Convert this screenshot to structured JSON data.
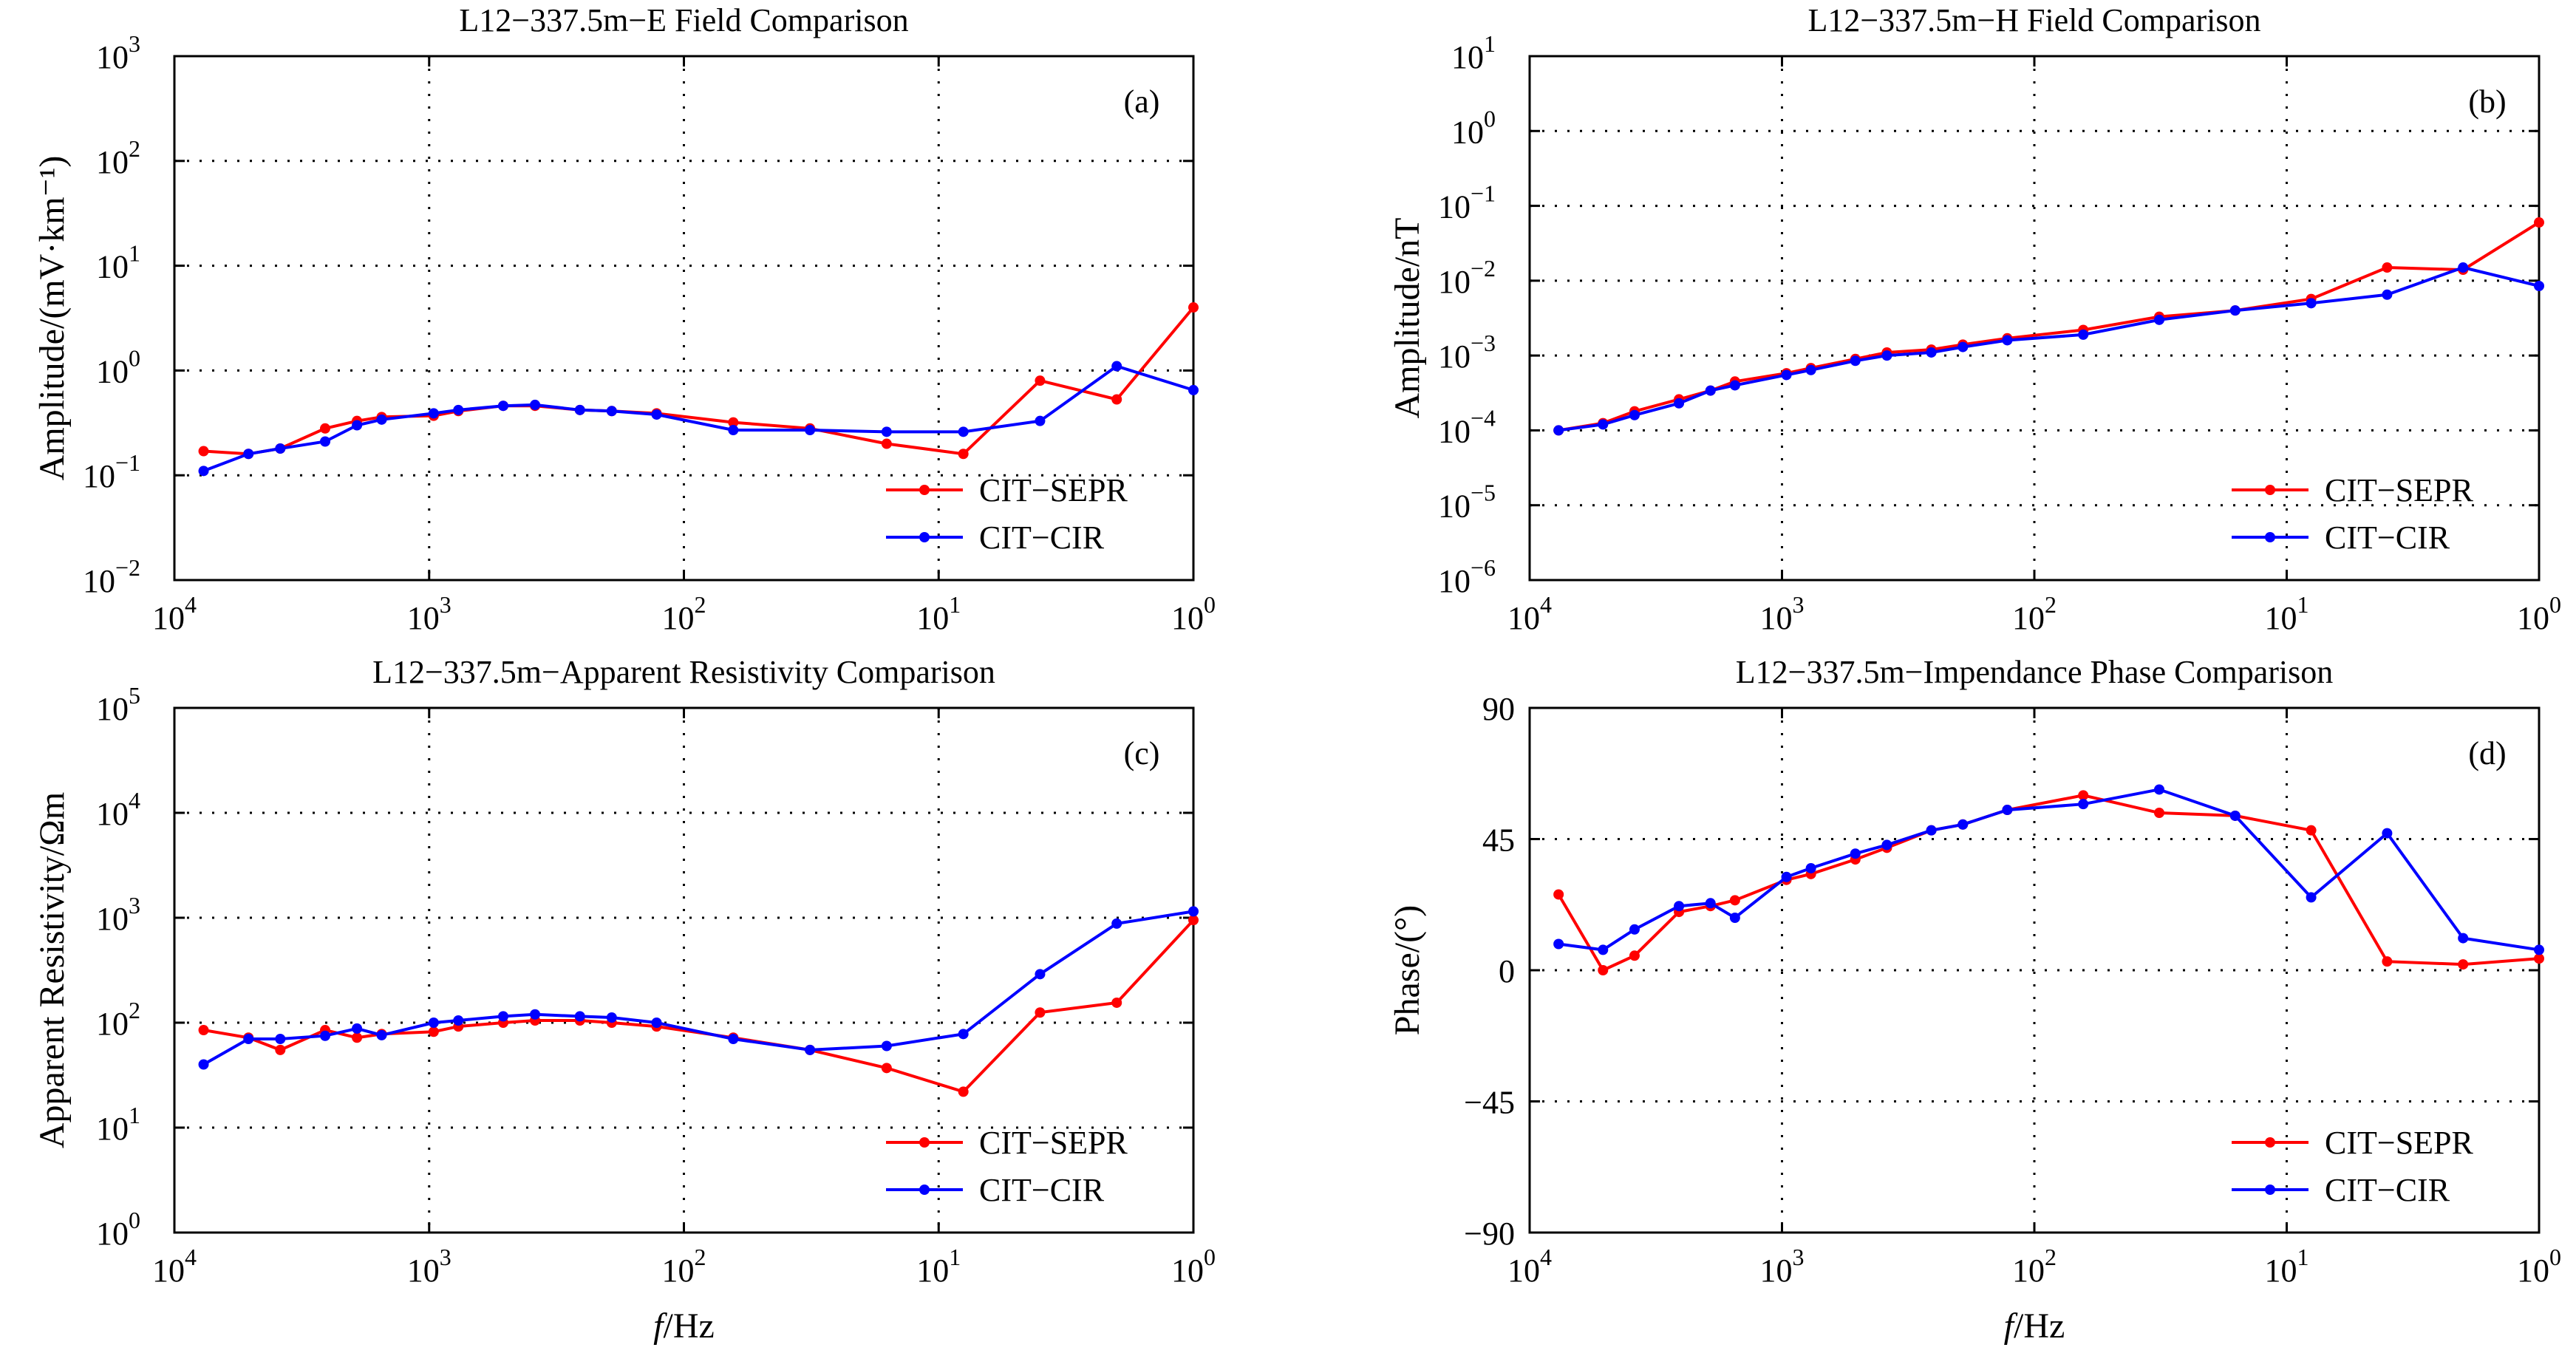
{
  "colors": {
    "CIT-SEPR": "#ff0000",
    "CIT-CIR": "#0000ff"
  },
  "xlabel_italic": "f",
  "xlabel_unit": "/Hz",
  "chart_data": [
    {
      "type": "line",
      "panel": "(a)",
      "title": "L12−337.5m−E Field Comparison",
      "ylabel": "Amplitude/(mV·km⁻¹)",
      "xscale": "log",
      "yscale": "log",
      "xlim": [
        10000,
        1
      ],
      "xaxis": "reversed",
      "ylim": [
        0.01,
        1000
      ],
      "xticks": [
        10000,
        1000,
        100,
        10,
        1
      ],
      "xtick_labels": [
        [
          "10",
          "4"
        ],
        [
          "10",
          "3"
        ],
        [
          "10",
          "2"
        ],
        [
          "10",
          "1"
        ],
        [
          "10",
          "0"
        ]
      ],
      "yticks": [
        0.01,
        0.1,
        1,
        10,
        100,
        1000
      ],
      "ytick_labels": [
        [
          "10",
          "−2"
        ],
        [
          "10",
          "−1"
        ],
        [
          "10",
          "0"
        ],
        [
          "10",
          "1"
        ],
        [
          "10",
          "2"
        ],
        [
          "10",
          "3"
        ]
      ],
      "grid": true,
      "legend": "bottom-right",
      "x": [
        7680,
        5120,
        3840,
        2560,
        1920,
        1536,
        960,
        768,
        512,
        384,
        256,
        192,
        128,
        64,
        32,
        16,
        8,
        4,
        2,
        1
      ],
      "series": [
        {
          "name": "CIT−SEPR",
          "values": [
            0.17,
            0.16,
            0.18,
            0.28,
            0.33,
            0.36,
            0.37,
            0.41,
            0.46,
            0.46,
            0.42,
            0.41,
            0.39,
            0.32,
            0.28,
            0.2,
            0.16,
            0.8,
            0.53,
            4.0
          ]
        },
        {
          "name": "CIT−CIR",
          "values": [
            0.11,
            0.16,
            0.18,
            0.21,
            0.3,
            0.34,
            0.39,
            0.42,
            0.46,
            0.47,
            0.42,
            0.41,
            0.38,
            0.27,
            0.27,
            0.26,
            0.26,
            0.33,
            1.1,
            0.65
          ]
        }
      ]
    },
    {
      "type": "line",
      "panel": "(b)",
      "title": "L12−337.5m−H Field Comparison",
      "ylabel": "Amplitude/nT",
      "xscale": "log",
      "yscale": "log",
      "xlim": [
        10000,
        1
      ],
      "xaxis": "reversed",
      "ylim": [
        1e-06,
        10
      ],
      "xticks": [
        10000,
        1000,
        100,
        10,
        1
      ],
      "xtick_labels": [
        [
          "10",
          "4"
        ],
        [
          "10",
          "3"
        ],
        [
          "10",
          "2"
        ],
        [
          "10",
          "1"
        ],
        [
          "10",
          "0"
        ]
      ],
      "yticks": [
        1e-06,
        1e-05,
        0.0001,
        0.001,
        0.01,
        0.1,
        1,
        10
      ],
      "ytick_labels": [
        [
          "10",
          "−6"
        ],
        [
          "10",
          "−5"
        ],
        [
          "10",
          "−4"
        ],
        [
          "10",
          "−3"
        ],
        [
          "10",
          "−2"
        ],
        [
          "10",
          "−1"
        ],
        [
          "10",
          "0"
        ],
        [
          "10",
          "1"
        ]
      ],
      "grid": true,
      "legend": "bottom-right",
      "x": [
        7680,
        5120,
        3840,
        2560,
        1920,
        1536,
        960,
        768,
        512,
        384,
        256,
        192,
        128,
        64,
        32,
        16,
        8,
        4,
        2,
        1
      ],
      "series": [
        {
          "name": "CIT−SEPR",
          "values": [
            0.0001,
            0.000125,
            0.00018,
            0.00026,
            0.00034,
            0.00045,
            0.00058,
            0.00068,
            0.0009,
            0.0011,
            0.0012,
            0.0014,
            0.0017,
            0.0022,
            0.0033,
            0.004,
            0.0057,
            0.015,
            0.014,
            0.06
          ]
        },
        {
          "name": "CIT−CIR",
          "values": [
            0.0001,
            0.00012,
            0.00016,
            0.00023,
            0.00034,
            0.0004,
            0.00055,
            0.00064,
            0.00085,
            0.001,
            0.0011,
            0.0013,
            0.0016,
            0.0019,
            0.003,
            0.004,
            0.005,
            0.0065,
            0.015,
            0.0085
          ]
        }
      ]
    },
    {
      "type": "line",
      "panel": "(c)",
      "title": "L12−337.5m−Apparent Resistivity Comparison",
      "ylabel": "Apparent Resistivity/Ωm",
      "xscale": "log",
      "yscale": "log",
      "xlim": [
        10000,
        1
      ],
      "xaxis": "reversed",
      "ylim": [
        1,
        100000
      ],
      "xticks": [
        10000,
        1000,
        100,
        10,
        1
      ],
      "xtick_labels": [
        [
          "10",
          "4"
        ],
        [
          "10",
          "3"
        ],
        [
          "10",
          "2"
        ],
        [
          "10",
          "1"
        ],
        [
          "10",
          "0"
        ]
      ],
      "yticks": [
        1,
        10,
        100,
        1000,
        10000,
        100000
      ],
      "ytick_labels": [
        [
          "10",
          "0"
        ],
        [
          "10",
          "1"
        ],
        [
          "10",
          "2"
        ],
        [
          "10",
          "3"
        ],
        [
          "10",
          "4"
        ],
        [
          "10",
          "5"
        ]
      ],
      "grid": true,
      "legend": "bottom-right",
      "x": [
        7680,
        5120,
        3840,
        2560,
        1920,
        1536,
        960,
        768,
        512,
        384,
        256,
        192,
        128,
        64,
        32,
        16,
        8,
        4,
        2,
        1
      ],
      "series": [
        {
          "name": "CIT−SEPR",
          "values": [
            85,
            72,
            55,
            85,
            72,
            78,
            82,
            92,
            100,
            105,
            105,
            100,
            92,
            72,
            55,
            37,
            22,
            125,
            155,
            950
          ]
        },
        {
          "name": "CIT−CIR",
          "values": [
            40,
            70,
            70,
            75,
            88,
            76,
            100,
            105,
            115,
            120,
            115,
            112,
            100,
            70,
            55,
            60,
            78,
            290,
            880,
            1150
          ]
        }
      ]
    },
    {
      "type": "line",
      "panel": "(d)",
      "title": "L12−337.5m−Impendance Phase Comparison",
      "ylabel": "Phase/(°)",
      "xscale": "log",
      "yscale": "linear",
      "xlim": [
        10000,
        1
      ],
      "xaxis": "reversed",
      "ylim": [
        -90,
        90
      ],
      "xticks": [
        10000,
        1000,
        100,
        10,
        1
      ],
      "xtick_labels": [
        [
          "10",
          "4"
        ],
        [
          "10",
          "3"
        ],
        [
          "10",
          "2"
        ],
        [
          "10",
          "1"
        ],
        [
          "10",
          "0"
        ]
      ],
      "yticks": [
        -90,
        -45,
        0,
        45,
        90
      ],
      "ytick_labels": [
        [
          "−90",
          ""
        ],
        [
          "−45",
          ""
        ],
        [
          "0",
          ""
        ],
        [
          "45",
          ""
        ],
        [
          "90",
          ""
        ]
      ],
      "grid": true,
      "legend": "bottom-right",
      "x": [
        7680,
        5120,
        3840,
        2560,
        1920,
        1536,
        960,
        768,
        512,
        384,
        256,
        192,
        128,
        64,
        32,
        16,
        8,
        4,
        2,
        1
      ],
      "series": [
        {
          "name": "CIT−SEPR",
          "values": [
            26,
            0,
            5,
            20,
            22,
            24,
            31,
            33,
            38,
            42,
            48,
            50,
            55,
            60,
            54,
            53,
            48,
            3,
            2,
            4
          ]
        },
        {
          "name": "CIT−CIR",
          "values": [
            9,
            7,
            14,
            22,
            23,
            18,
            32,
            35,
            40,
            43,
            48,
            50,
            55,
            57,
            62,
            53,
            25,
            47,
            11,
            7
          ]
        }
      ]
    }
  ]
}
